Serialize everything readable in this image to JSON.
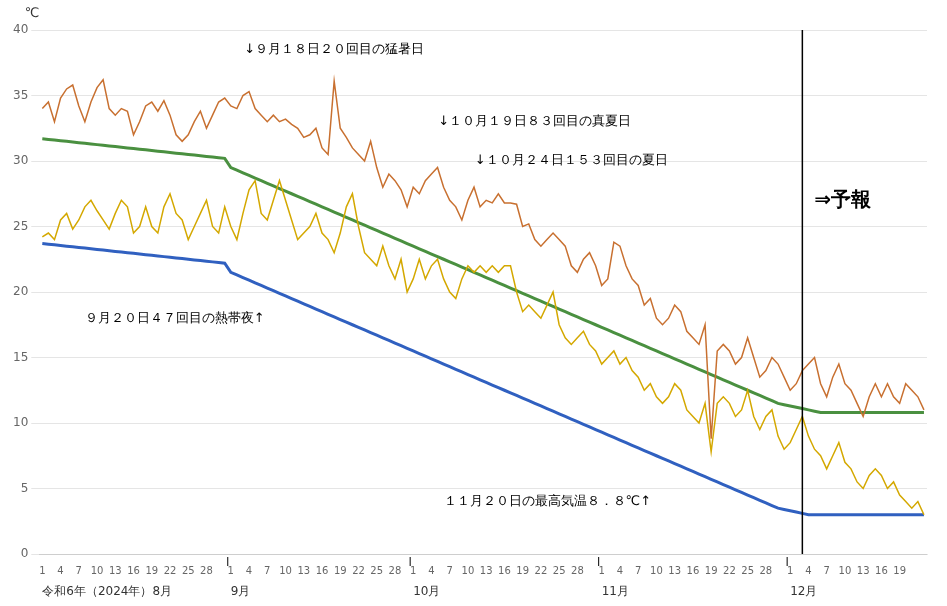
{
  "chart_data": {
    "type": "line",
    "y_label": "℃",
    "ylim": [
      0,
      40
    ],
    "yticks": [
      0,
      5,
      10,
      15,
      20,
      25,
      30,
      35,
      40
    ],
    "grid": "y",
    "categories": [
      "1",
      null,
      null,
      "4",
      null,
      null,
      "7",
      null,
      null,
      "10",
      null,
      null,
      "13",
      null,
      null,
      "16",
      null,
      null,
      "19",
      null,
      null,
      "22",
      null,
      null,
      "25",
      null,
      null,
      "28",
      null,
      null,
      null,
      "1",
      null,
      null,
      "4",
      null,
      null,
      "7",
      null,
      null,
      "10",
      null,
      null,
      "13",
      null,
      null,
      "16",
      null,
      null,
      "19",
      null,
      null,
      "22",
      null,
      null,
      "25",
      null,
      null,
      "28",
      null,
      null,
      "1",
      null,
      null,
      "4",
      null,
      null,
      "7",
      null,
      null,
      "10",
      null,
      null,
      "13",
      null,
      null,
      "16",
      null,
      null,
      "19",
      null,
      null,
      "22",
      null,
      null,
      "25",
      null,
      null,
      "28",
      null,
      null,
      null,
      "1",
      null,
      null,
      "4",
      null,
      null,
      "7",
      null,
      null,
      "10",
      null,
      null,
      "13",
      null,
      null,
      "16",
      null,
      null,
      "19",
      null,
      null,
      "22",
      null,
      null,
      "25",
      null,
      null,
      "28",
      null,
      null,
      null,
      "1",
      null,
      null,
      "4",
      null,
      null,
      "7",
      null,
      null,
      "10",
      null,
      null,
      "13",
      null,
      null,
      "16",
      null,
      null,
      "19",
      null,
      null,
      null,
      null
    ],
    "month_labels": [
      {
        "text": "令和6年（2024年）8月",
        "x": 1
      },
      {
        "text": "9月",
        "x": 32
      },
      {
        "text": "10月",
        "x": 62
      },
      {
        "text": "11月",
        "x": 93
      },
      {
        "text": "12月",
        "x": 124
      }
    ],
    "forecast": {
      "x": 126,
      "label": "⇒予報",
      "label_y": 27
    },
    "annotations": [
      {
        "text": "↓９月１８日２０回目の猛暑日",
        "x": 49,
        "y": 38.0
      },
      {
        "text": "↓１０月１９日８３回目の真夏日",
        "x": 82,
        "y": 32.5
      },
      {
        "text": "↓１０月２４日１５３回目の夏日",
        "x": 88,
        "y": 29.5
      },
      {
        "text": "９月２０日４７回目の熱帯夜↑",
        "x": 8,
        "y": 18.0
      },
      {
        "text": "１１月２０日の最高気温８．８℃↑",
        "x": 67,
        "y": 4.0
      }
    ],
    "series": [
      {
        "color": "#c87030",
        "values": [
          34.0,
          34.5,
          33.0,
          34.8,
          35.5,
          35.8,
          34.2,
          33.0,
          34.5,
          35.6,
          36.2,
          34.0,
          33.5,
          34.0,
          33.8,
          32.0,
          33.0,
          34.2,
          34.5,
          33.8,
          34.6,
          33.5,
          32.0,
          31.5,
          32.0,
          33.0,
          33.8,
          32.5,
          33.5,
          34.5,
          34.8,
          34.2,
          34.0,
          35.0,
          35.3,
          34.0,
          33.5,
          33.0,
          33.5,
          33.0,
          33.2,
          32.8,
          32.5,
          31.8,
          32.0,
          32.5,
          31.0,
          30.5,
          36.1,
          32.5,
          31.8,
          31.0,
          30.5,
          30.0,
          31.5,
          29.5,
          28.0,
          29.0,
          28.5,
          27.8,
          26.5,
          28.0,
          27.5,
          28.5,
          29.0,
          29.5,
          28.0,
          27.0,
          26.5,
          25.5,
          27.0,
          28.0,
          26.5,
          27.0,
          26.8,
          27.5,
          26.8,
          26.8,
          26.7,
          25.0,
          25.2,
          24.0,
          23.5,
          24.0,
          24.5,
          24.0,
          23.5,
          22.0,
          21.5,
          22.5,
          23.0,
          22.0,
          20.5,
          21.0,
          23.8,
          23.5,
          22.0,
          21.0,
          20.5,
          19.0,
          19.5,
          18.0,
          17.5,
          18.0,
          19.0,
          18.5,
          17.0,
          16.5,
          16.0,
          17.5,
          8.8,
          15.5,
          16.0,
          15.5,
          14.5,
          15.0,
          16.5,
          15.0,
          13.5,
          14.0,
          15.0,
          14.5,
          13.5,
          12.5,
          13.0,
          14.0,
          14.5,
          15.0,
          13.0,
          12.0,
          13.5,
          14.5,
          13.0,
          12.5,
          11.5,
          10.5,
          12.0,
          13.0,
          12.0,
          13.0,
          12.0,
          11.5,
          13.0,
          12.5,
          12.0,
          11.0
        ]
      },
      {
        "color": "#d4a800",
        "values": [
          24.2,
          24.5,
          24.0,
          25.5,
          26.0,
          24.8,
          25.5,
          26.5,
          27.0,
          26.2,
          25.5,
          24.8,
          26.0,
          27.0,
          26.5,
          24.5,
          25.0,
          26.5,
          25.0,
          24.5,
          26.5,
          27.5,
          26.0,
          25.5,
          24.0,
          25.0,
          26.0,
          27.0,
          25.0,
          24.5,
          26.5,
          25.0,
          24.0,
          26.0,
          27.8,
          28.5,
          26.0,
          25.5,
          27.0,
          28.5,
          27.0,
          25.5,
          24.0,
          24.5,
          25.0,
          26.0,
          24.5,
          24.0,
          23.0,
          24.5,
          26.5,
          27.5,
          25.0,
          23.0,
          22.5,
          22.0,
          23.5,
          22.0,
          21.0,
          22.5,
          20.0,
          21.0,
          22.5,
          21.0,
          22.0,
          22.5,
          21.0,
          20.0,
          19.5,
          21.0,
          22.0,
          21.5,
          22.0,
          21.5,
          22.0,
          21.5,
          22.0,
          22.0,
          20.0,
          18.5,
          19.0,
          18.5,
          18.0,
          19.0,
          20.0,
          17.5,
          16.5,
          16.0,
          16.5,
          17.0,
          16.0,
          15.5,
          14.5,
          15.0,
          15.5,
          14.5,
          15.0,
          14.0,
          13.5,
          12.5,
          13.0,
          12.0,
          11.5,
          12.0,
          13.0,
          12.5,
          11.0,
          10.5,
          10.0,
          11.5,
          7.8,
          11.5,
          12.0,
          11.5,
          10.5,
          11.0,
          12.5,
          10.5,
          9.5,
          10.5,
          11.0,
          9.0,
          8.0,
          8.5,
          9.5,
          10.5,
          9.0,
          8.0,
          7.5,
          6.5,
          7.5,
          8.5,
          7.0,
          6.5,
          5.5,
          5.0,
          6.0,
          6.5,
          6.0,
          5.0,
          5.5,
          4.5,
          4.0,
          3.5,
          4.0,
          3.0
        ]
      },
      {
        "color": "#4a9040",
        "values": [
          31.7,
          31.65,
          31.6,
          31.55,
          31.5,
          31.45,
          31.4,
          31.35,
          31.3,
          31.25,
          31.2,
          31.15,
          31.1,
          31.05,
          31.0,
          30.95,
          30.9,
          30.85,
          30.8,
          30.75,
          30.7,
          30.65,
          30.6,
          30.55,
          30.5,
          30.45,
          30.4,
          30.35,
          30.3,
          30.25,
          30.2,
          29.5,
          29.3,
          29.1,
          28.9,
          28.7,
          28.5,
          28.3,
          28.1,
          27.9,
          27.7,
          27.5,
          27.3,
          27.1,
          26.9,
          26.7,
          26.5,
          26.3,
          26.1,
          25.9,
          25.7,
          25.5,
          25.3,
          25.1,
          24.9,
          24.7,
          24.5,
          24.3,
          24.1,
          23.9,
          23.7,
          23.5,
          23.3,
          23.1,
          22.9,
          22.7,
          22.5,
          22.3,
          22.1,
          21.9,
          21.7,
          21.5,
          21.3,
          21.1,
          20.9,
          20.7,
          20.5,
          20.3,
          20.1,
          19.9,
          19.7,
          19.5,
          19.3,
          19.1,
          18.9,
          18.7,
          18.5,
          18.3,
          18.1,
          17.9,
          17.7,
          17.5,
          17.3,
          17.1,
          16.9,
          16.7,
          16.5,
          16.3,
          16.1,
          15.9,
          15.7,
          15.5,
          15.3,
          15.1,
          14.9,
          14.7,
          14.5,
          14.3,
          14.1,
          13.9,
          13.7,
          13.5,
          13.3,
          13.1,
          12.9,
          12.7,
          12.5,
          12.3,
          12.1,
          11.9,
          11.7,
          11.5,
          11.4,
          11.3,
          11.2,
          11.1,
          11.0,
          10.9,
          10.8,
          10.8,
          10.8,
          10.8,
          10.8,
          10.8,
          10.8,
          10.8,
          10.8,
          10.8,
          10.8,
          10.8,
          10.8,
          10.8,
          10.8,
          10.8,
          10.8,
          10.8
        ]
      },
      {
        "color": "#3060c0",
        "values": [
          23.7,
          23.65,
          23.6,
          23.55,
          23.5,
          23.45,
          23.4,
          23.35,
          23.3,
          23.25,
          23.2,
          23.15,
          23.1,
          23.05,
          23.0,
          22.95,
          22.9,
          22.85,
          22.8,
          22.75,
          22.7,
          22.65,
          22.6,
          22.55,
          22.5,
          22.45,
          22.4,
          22.35,
          22.3,
          22.25,
          22.2,
          21.5,
          21.3,
          21.1,
          20.9,
          20.7,
          20.5,
          20.3,
          20.1,
          19.9,
          19.7,
          19.5,
          19.3,
          19.1,
          18.9,
          18.7,
          18.5,
          18.3,
          18.1,
          17.9,
          17.7,
          17.5,
          17.3,
          17.1,
          16.9,
          16.7,
          16.5,
          16.3,
          16.1,
          15.9,
          15.7,
          15.5,
          15.3,
          15.1,
          14.9,
          14.7,
          14.5,
          14.3,
          14.1,
          13.9,
          13.7,
          13.5,
          13.3,
          13.1,
          12.9,
          12.7,
          12.5,
          12.3,
          12.1,
          11.9,
          11.7,
          11.5,
          11.3,
          11.1,
          10.9,
          10.7,
          10.5,
          10.3,
          10.1,
          9.9,
          9.7,
          9.5,
          9.3,
          9.1,
          8.9,
          8.7,
          8.5,
          8.3,
          8.1,
          7.9,
          7.7,
          7.5,
          7.3,
          7.1,
          6.9,
          6.7,
          6.5,
          6.3,
          6.1,
          5.9,
          5.7,
          5.5,
          5.3,
          5.1,
          4.9,
          4.7,
          4.5,
          4.3,
          4.1,
          3.9,
          3.7,
          3.5,
          3.4,
          3.3,
          3.2,
          3.1,
          3.0,
          3.0,
          3.0,
          3.0,
          3.0,
          3.0,
          3.0,
          3.0,
          3.0,
          3.0,
          3.0,
          3.0,
          3.0,
          3.0,
          3.0,
          3.0,
          3.0,
          3.0,
          3.0,
          3.0
        ]
      }
    ]
  }
}
